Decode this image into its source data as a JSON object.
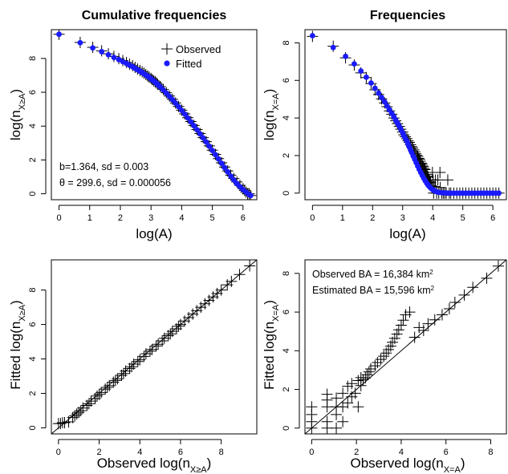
{
  "colors": {
    "observed": "#000000",
    "fitted": "#1a1aff"
  },
  "chart_data": [
    {
      "id": "cum",
      "type": "scatter",
      "title": "Cumulative frequencies",
      "xlabel": "log(A)",
      "ylabel": [
        "log(n",
        "X≥A",
        ")"
      ],
      "xlim": [
        -0.25,
        6.45
      ],
      "ylim": [
        -0.35,
        9.7
      ],
      "xticks": [
        0,
        1,
        2,
        3,
        4,
        5,
        6
      ],
      "yticks": [
        0,
        2,
        4,
        6,
        8
      ],
      "legend": {
        "position": "top-right",
        "entries": [
          "Observed",
          "Fitted"
        ]
      },
      "annotations": [
        "b=1.364, sd = 0.003",
        "θ = 299.6, sd = 0.000056"
      ],
      "series": [
        {
          "name": "Observed",
          "marker": "plus",
          "x": [
            0,
            0.69,
            1.1,
            1.39,
            1.61,
            1.79,
            1.95,
            2.08,
            2.2,
            2.3,
            2.4,
            2.48,
            2.56,
            2.64,
            2.71,
            2.77,
            2.83,
            2.89,
            2.94,
            3.0,
            3.04,
            3.09,
            3.14,
            3.18,
            3.22,
            3.3,
            3.4,
            3.5,
            3.6,
            3.7,
            3.8,
            3.9,
            4.0,
            4.1,
            4.2,
            4.3,
            4.4,
            4.5,
            4.6,
            4.7,
            4.8,
            4.9,
            5.0,
            5.1,
            5.2,
            5.3,
            5.4,
            5.5,
            5.6,
            5.7,
            5.8,
            5.9,
            6.0,
            6.05,
            6.1,
            6.15,
            6.2,
            6.25
          ],
          "y": [
            9.43,
            8.95,
            8.66,
            8.45,
            8.27,
            8.12,
            7.99,
            7.87,
            7.76,
            7.66,
            7.57,
            7.47,
            7.38,
            7.29,
            7.21,
            7.13,
            7.05,
            6.97,
            6.9,
            6.82,
            6.75,
            6.68,
            6.61,
            6.54,
            6.47,
            6.34,
            6.16,
            5.97,
            5.78,
            5.58,
            5.37,
            5.16,
            4.94,
            4.72,
            4.5,
            4.27,
            4.04,
            3.8,
            3.56,
            3.32,
            3.08,
            2.83,
            2.58,
            2.33,
            2.08,
            1.83,
            1.58,
            1.35,
            1.1,
            0.9,
            0.7,
            0.5,
            0.3,
            0.2,
            0.1,
            0.0,
            0.0,
            -0.1
          ]
        },
        {
          "name": "Fitted",
          "marker": "dot",
          "x": [
            0,
            0.69,
            1.1,
            1.39,
            1.61,
            1.79,
            1.95,
            2.08,
            2.2,
            2.3,
            2.4,
            2.48,
            2.56,
            2.64,
            2.71,
            2.77,
            2.83,
            2.89,
            2.94,
            3.0,
            3.04,
            3.09,
            3.14,
            3.18,
            3.22,
            3.3,
            3.4,
            3.5,
            3.6,
            3.7,
            3.8,
            3.9,
            4.0,
            4.1,
            4.2,
            4.3,
            4.4,
            4.5,
            4.6,
            4.7,
            4.8,
            4.9,
            5.0,
            5.1,
            5.2,
            5.3,
            5.4,
            5.5,
            5.6,
            5.7,
            5.8,
            5.9,
            6.0,
            6.1,
            6.2,
            6.25
          ],
          "y": [
            9.43,
            8.93,
            8.62,
            8.4,
            8.22,
            8.06,
            7.93,
            7.81,
            7.7,
            7.6,
            7.51,
            7.42,
            7.33,
            7.25,
            7.17,
            7.1,
            7.02,
            6.95,
            6.88,
            6.8,
            6.73,
            6.66,
            6.59,
            6.52,
            6.45,
            6.32,
            6.14,
            5.95,
            5.76,
            5.56,
            5.36,
            5.15,
            4.93,
            4.71,
            4.48,
            4.25,
            4.02,
            3.78,
            3.54,
            3.3,
            3.06,
            2.81,
            2.56,
            2.31,
            2.06,
            1.8,
            1.55,
            1.3,
            1.05,
            0.82,
            0.6,
            0.42,
            0.25,
            0.1,
            -0.05,
            -0.1
          ]
        }
      ]
    },
    {
      "id": "freq",
      "type": "scatter",
      "title": "Frequencies",
      "xlabel": "log(A)",
      "ylabel": [
        "log(n",
        "X=A",
        ")"
      ],
      "xlim": [
        -0.25,
        6.45
      ],
      "ylim": [
        -0.35,
        8.7
      ],
      "xticks": [
        0,
        1,
        2,
        3,
        4,
        5,
        6
      ],
      "yticks": [
        0,
        2,
        4,
        6,
        8
      ],
      "series": [
        {
          "name": "Observed",
          "marker": "plus",
          "x": [
            0,
            0.69,
            1.1,
            1.39,
            1.61,
            1.79,
            1.95,
            2.08,
            2.2,
            2.3,
            2.4,
            2.48,
            2.56,
            2.64,
            2.71,
            2.77,
            2.83,
            2.89,
            2.94,
            3.0,
            3.04,
            3.09,
            3.14,
            3.18,
            3.22,
            3.26,
            3.3,
            3.33,
            3.37,
            3.4,
            3.43,
            3.47,
            3.5,
            3.53,
            3.56,
            3.58,
            3.61,
            3.64,
            3.66,
            3.69,
            3.71,
            3.74,
            3.76,
            3.78,
            3.81,
            3.83,
            3.85,
            3.87,
            3.89,
            3.91,
            3.93,
            3.95,
            3.97,
            3.99,
            4.01,
            4.03,
            4.05,
            4.09,
            4.13,
            4.17,
            4.2,
            4.24,
            4.25,
            4.3,
            4.35,
            4.4,
            4.45,
            4.5,
            4.55,
            4.6,
            4.7,
            4.8,
            4.9,
            5.0,
            5.1,
            5.2,
            5.3,
            5.4,
            5.5,
            5.6,
            5.7,
            5.8,
            5.9,
            6.0,
            6.1,
            6.2
          ],
          "y": [
            8.34,
            7.82,
            7.2,
            6.82,
            6.4,
            6.15,
            5.83,
            5.5,
            5.25,
            5.02,
            4.8,
            4.6,
            4.38,
            4.2,
            4.0,
            3.85,
            3.7,
            3.55,
            3.4,
            3.25,
            3.1,
            3.0,
            2.9,
            2.78,
            2.7,
            2.58,
            2.48,
            2.4,
            2.3,
            2.2,
            2.1,
            2.02,
            1.95,
            1.85,
            1.8,
            1.7,
            1.6,
            1.55,
            1.45,
            1.4,
            1.3,
            1.25,
            1.1,
            1.1,
            1.0,
            0.9,
            0.85,
            0.7,
            0.7,
            0.6,
            0.55,
            0.4,
            0.35,
            1.1,
            0.7,
            0.0,
            0.35,
            0.7,
            0.0,
            0.7,
            0.0,
            1.1,
            0.3,
            0.0,
            0.0,
            0.0,
            0.0,
            0.7,
            0.0,
            0.0,
            0.0,
            0.0,
            0.0,
            0.0,
            0.0,
            0.0,
            0.0,
            0.0,
            0.0,
            0.0,
            0.0,
            0.0,
            0.0,
            0.0,
            0.0,
            0.0
          ]
        },
        {
          "name": "Fitted",
          "marker": "dot",
          "x": [
            0,
            0.69,
            1.1,
            1.39,
            1.61,
            1.79,
            1.95,
            2.08,
            2.2,
            2.3,
            2.4,
            2.48,
            2.56,
            2.64,
            2.71,
            2.77,
            2.83,
            2.89,
            2.94,
            3.0,
            3.04,
            3.09,
            3.14,
            3.18,
            3.22,
            3.26,
            3.3,
            3.35,
            3.4,
            3.45,
            3.5,
            3.55,
            3.6,
            3.65,
            3.7,
            3.75,
            3.8,
            3.85,
            3.9,
            3.95,
            4.0,
            4.05,
            4.1,
            4.15,
            4.2,
            4.3,
            4.4,
            4.5,
            4.6,
            4.7,
            4.8,
            4.9,
            5.0,
            5.1,
            5.2,
            5.3,
            5.4,
            5.5,
            5.6,
            5.7,
            5.8,
            5.9,
            6.0,
            6.1,
            6.2
          ],
          "y": [
            8.38,
            7.75,
            7.28,
            6.88,
            6.5,
            6.17,
            5.86,
            5.58,
            5.32,
            5.08,
            4.86,
            4.64,
            4.44,
            4.24,
            4.06,
            3.88,
            3.72,
            3.55,
            3.39,
            3.22,
            3.06,
            2.91,
            2.76,
            2.61,
            2.46,
            2.3,
            2.16,
            1.97,
            1.8,
            1.62,
            1.44,
            1.27,
            1.1,
            0.95,
            0.8,
            0.66,
            0.53,
            0.42,
            0.33,
            0.25,
            0.18,
            0.13,
            0.09,
            0.06,
            0.04,
            0.02,
            0.01,
            0.0,
            0.0,
            0.0,
            0.0,
            0.0,
            0.0,
            0.0,
            0.0,
            0.0,
            0.0,
            0.0,
            0.0,
            0.0,
            0.0,
            0.0,
            0.0,
            0.0,
            0.0
          ]
        }
      ]
    },
    {
      "id": "cumfit",
      "type": "scatter",
      "title": "",
      "xlabel": [
        "Observed log(n",
        "X≥A",
        ")"
      ],
      "ylabel": [
        "Fitted log(n",
        "X≥A",
        ")"
      ],
      "xlim": [
        -0.35,
        9.75
      ],
      "ylim": [
        -0.35,
        9.75
      ],
      "xticks": [
        0,
        2,
        4,
        6,
        8
      ],
      "yticks": [
        0,
        2,
        4,
        6,
        8
      ],
      "reference_line": "y = x",
      "series": [
        {
          "name": "Observed vs Fitted",
          "marker": "plus",
          "x": [
            0.0,
            0.1,
            0.2,
            0.3,
            0.5,
            0.7,
            0.8,
            0.9,
            1.0,
            1.1,
            1.2,
            1.4,
            1.5,
            1.6,
            1.8,
            1.9,
            2.0,
            2.1,
            2.3,
            2.4,
            2.5,
            2.7,
            2.8,
            2.9,
            3.1,
            3.2,
            3.3,
            3.5,
            3.6,
            3.7,
            3.9,
            4.0,
            4.2,
            4.3,
            4.5,
            4.6,
            4.8,
            4.9,
            5.1,
            5.2,
            5.4,
            5.5,
            5.6,
            5.8,
            5.9,
            6.0,
            6.2,
            6.4,
            6.6,
            6.8,
            7.0,
            7.2,
            7.4,
            7.6,
            7.8,
            8.0,
            8.3,
            8.5,
            8.9,
            9.4
          ],
          "y": [
            0.25,
            0.25,
            0.3,
            0.3,
            0.35,
            0.6,
            0.7,
            0.8,
            0.9,
            1.0,
            1.15,
            1.3,
            1.4,
            1.55,
            1.7,
            1.85,
            1.95,
            2.05,
            2.25,
            2.35,
            2.45,
            2.65,
            2.75,
            2.85,
            3.05,
            3.15,
            3.3,
            3.45,
            3.55,
            3.7,
            3.85,
            3.95,
            4.15,
            4.3,
            4.45,
            4.55,
            4.75,
            4.85,
            5.05,
            5.2,
            5.35,
            5.45,
            5.6,
            5.75,
            5.9,
            6.0,
            6.2,
            6.4,
            6.6,
            6.8,
            7.0,
            7.2,
            7.4,
            7.6,
            7.8,
            8.0,
            8.3,
            8.5,
            8.9,
            9.4
          ]
        }
      ]
    },
    {
      "id": "freqfit",
      "type": "scatter",
      "title": "",
      "xlabel": [
        "Observed log(n",
        "X=A",
        ")"
      ],
      "ylabel": [
        "Fitted log(n",
        "X=A",
        ")"
      ],
      "xlim": [
        -0.3,
        8.7
      ],
      "ylim": [
        -0.3,
        8.7
      ],
      "xticks": [
        0,
        2,
        4,
        6,
        8
      ],
      "yticks": [
        0,
        2,
        4,
        6,
        8
      ],
      "reference_line": "y = x",
      "annotations": [
        {
          "text": "Observed BA = 16,384 km",
          "sup": "2"
        },
        {
          "text": "Estimated BA = 15,596 km",
          "sup": "2"
        }
      ],
      "series": [
        {
          "name": "Observed vs Fitted",
          "marker": "plus",
          "x": [
            0,
            0,
            0,
            0,
            0.69,
            0.69,
            0.69,
            0.69,
            0.69,
            1.1,
            1.1,
            1.1,
            1.1,
            1.39,
            1.39,
            1.39,
            1.61,
            1.61,
            1.79,
            1.79,
            1.95,
            2.08,
            2.08,
            2.2,
            2.2,
            2.3,
            2.4,
            2.48,
            2.56,
            2.64,
            2.83,
            2.94,
            3.09,
            3.22,
            3.33,
            3.43,
            3.53,
            3.61,
            3.71,
            3.81,
            3.89,
            4.0,
            4.09,
            4.2,
            4.38,
            4.6,
            4.8,
            5.0,
            5.2,
            5.5,
            5.83,
            6.15,
            6.4,
            6.82,
            7.2,
            7.82,
            8.34
          ],
          "y": [
            0.0,
            0.33,
            0.7,
            1.1,
            0.0,
            0.33,
            1.1,
            1.45,
            1.75,
            0.0,
            0.7,
            1.1,
            1.55,
            0.33,
            1.1,
            1.8,
            1.3,
            2.16,
            1.62,
            2.3,
            1.8,
            1.1,
            2.46,
            2.2,
            2.61,
            2.5,
            2.6,
            2.76,
            2.91,
            3.06,
            3.22,
            3.39,
            3.55,
            3.72,
            3.88,
            4.06,
            4.24,
            4.44,
            4.64,
            4.86,
            5.08,
            5.32,
            5.58,
            5.86,
            6.0,
            4.7,
            5.2,
            5.05,
            5.4,
            5.6,
            5.86,
            6.17,
            6.5,
            6.88,
            7.28,
            7.75,
            8.38
          ]
        }
      ]
    }
  ]
}
